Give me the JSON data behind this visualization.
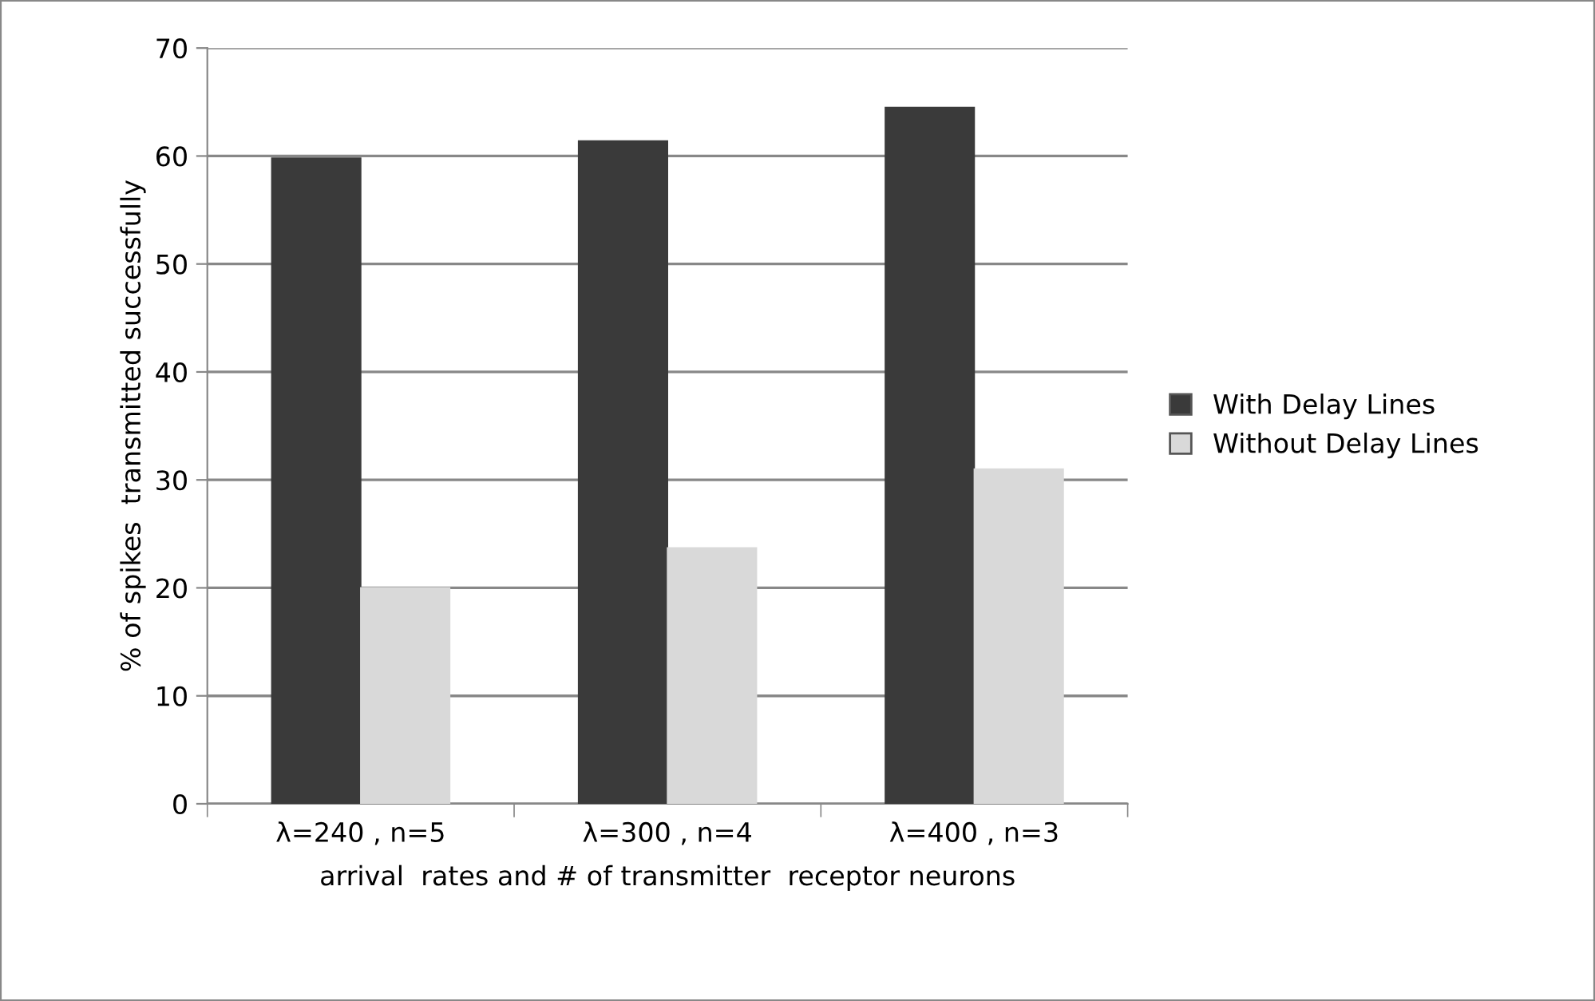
{
  "chart_data": {
    "type": "bar",
    "xlabel": "arrival  rates and # of transmitter  receptor neurons",
    "ylabel": "% of spikes  transmitted successfully",
    "categories": [
      "λ=240 , n=5",
      "λ=300 , n=4",
      "λ=400 , n=3"
    ],
    "series": [
      {
        "name": "With Delay Lines",
        "color": "#3a3a3a",
        "values": [
          59.8,
          61.4,
          64.5
        ]
      },
      {
        "name": "Without Delay Lines",
        "color": "#d9d9d9",
        "values": [
          20.0,
          23.7,
          31.0
        ]
      }
    ],
    "ylim": [
      0,
      70
    ],
    "yticks": [
      0,
      10,
      20,
      30,
      40,
      50,
      60,
      70
    ],
    "grid": "y",
    "legend": "right"
  }
}
